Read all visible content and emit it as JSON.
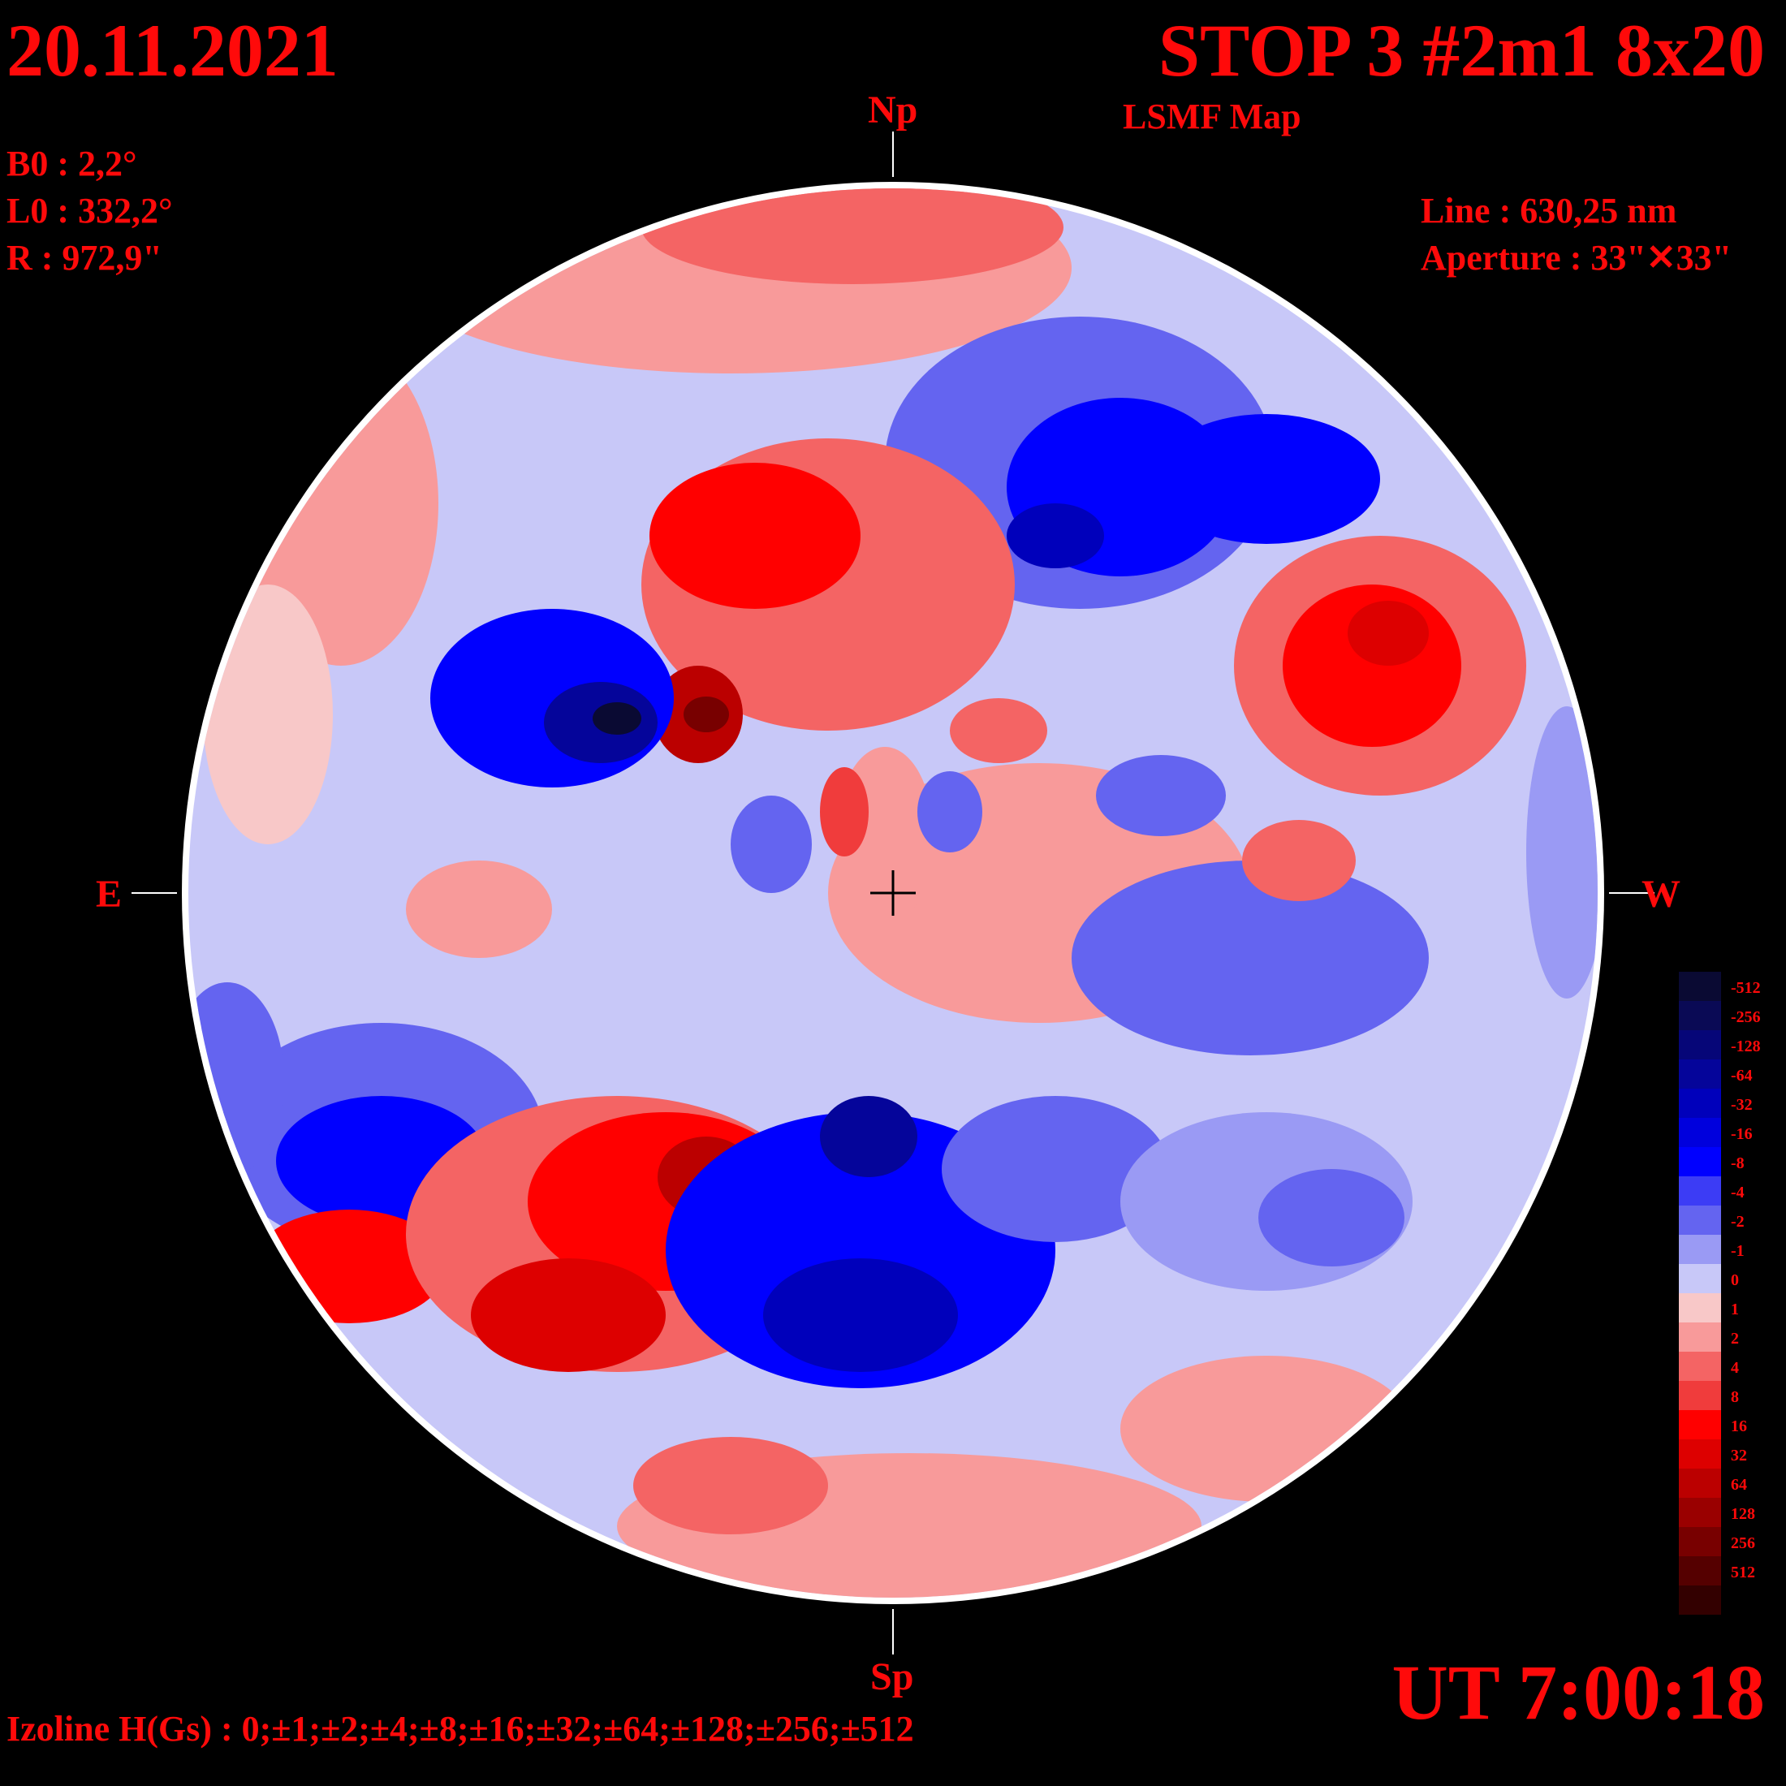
{
  "header": {
    "date": "20.11.2021",
    "title": "STOP 3 #2m1 8x20",
    "subtitle": "LSMF  Map"
  },
  "params": {
    "b0": "B0 : 2,2°",
    "l0": "L0 : 332,2°",
    "r": "R  : 972,9\""
  },
  "instrument": {
    "line": "Line :  630,25 nm",
    "aperture": "Aperture : 33\"✕33\""
  },
  "directions": {
    "north": "Np",
    "south": "Sp",
    "east": "E",
    "west": "W"
  },
  "time": "UT 7:00:18",
  "izoline": "Izoline H(Gs) : 0;±1;±2;±4;±8;±16;±32;±64;±128;±256;±512",
  "legend": {
    "entries": [
      {
        "label": "-512",
        "color": "#0a0a33"
      },
      {
        "label": "-256",
        "color": "#0a0a55"
      },
      {
        "label": "-128",
        "color": "#060678"
      },
      {
        "label": "-64",
        "color": "#05059a"
      },
      {
        "label": "-32",
        "color": "#0000bb"
      },
      {
        "label": "-16",
        "color": "#0000dd"
      },
      {
        "label": "-8",
        "color": "#0000ff"
      },
      {
        "label": "-4",
        "color": "#3c3cf5"
      },
      {
        "label": "-2",
        "color": "#6464f0"
      },
      {
        "label": "-1",
        "color": "#9a9af4"
      },
      {
        "label": "0",
        "color": "#c8c8f8"
      },
      {
        "label": "1",
        "color": "#f8c8c8"
      },
      {
        "label": "2",
        "color": "#f89a9a"
      },
      {
        "label": "4",
        "color": "#f46464"
      },
      {
        "label": "8",
        "color": "#f03c3c"
      },
      {
        "label": "16",
        "color": "#ff0000"
      },
      {
        "label": "32",
        "color": "#dd0000"
      },
      {
        "label": "64",
        "color": "#bb0000"
      },
      {
        "label": "128",
        "color": "#9a0000"
      },
      {
        "label": "256",
        "color": "#780000"
      },
      {
        "label": "512",
        "color": "#550000"
      }
    ],
    "bottom_color": "#330000"
  }
}
